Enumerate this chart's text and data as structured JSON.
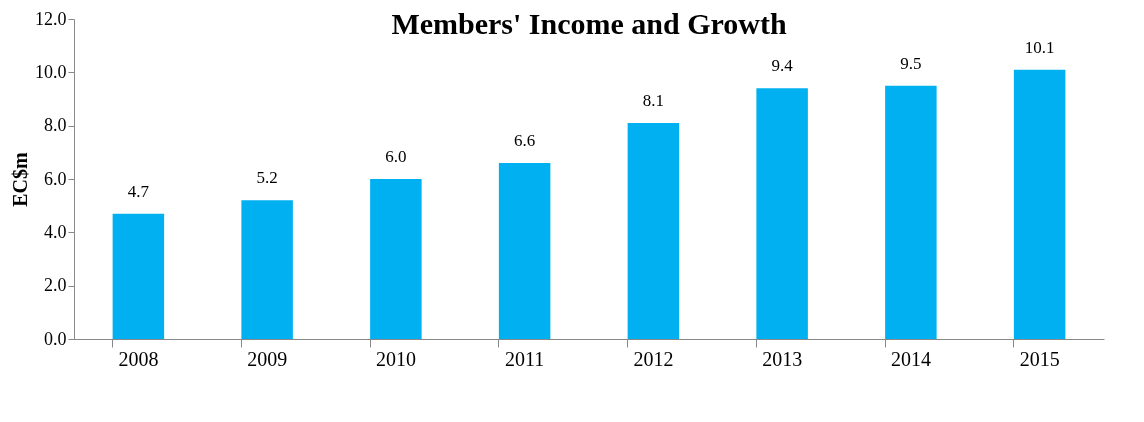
{
  "chart_data": {
    "type": "bar",
    "title": "Members' Income and Growth",
    "ylabel": "EC$m",
    "categories": [
      "2008",
      "2009",
      "2010",
      "2011",
      "2012",
      "2013",
      "2014",
      "2015"
    ],
    "values": [
      4.7,
      5.2,
      6.0,
      6.6,
      8.1,
      9.4,
      9.5,
      10.1
    ],
    "color": "#00b0f0",
    "ylim": [
      0,
      12
    ],
    "yticks": [
      {
        "value": 0,
        "label": "0.0"
      },
      {
        "value": 2,
        "label": "2.0"
      },
      {
        "value": 4,
        "label": "4.0"
      },
      {
        "value": 6,
        "label": "6.0"
      },
      {
        "value": 8,
        "label": "8.0"
      },
      {
        "value": 10,
        "label": "10.0"
      },
      {
        "value": 12,
        "label": "12.0"
      }
    ],
    "value_labels": [
      "4.7",
      "5.2",
      "6.0",
      "6.6",
      "8.1",
      "9.4",
      "9.5",
      "10.1"
    ],
    "grid": false
  }
}
